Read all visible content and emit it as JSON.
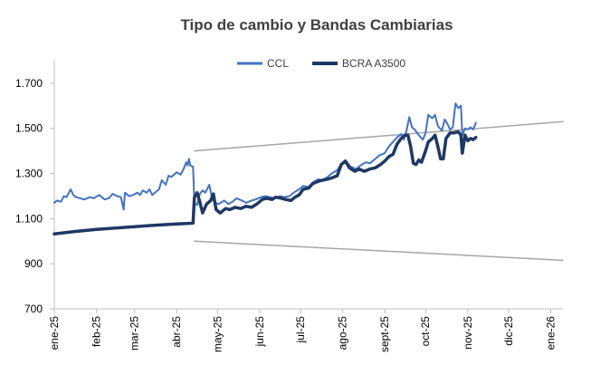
{
  "chart_data": {
    "type": "line",
    "title": "Tipo de cambio y Bandas Cambiarias",
    "xlabel": "",
    "ylabel": "",
    "ylim": [
      700,
      1800
    ],
    "yticks": [
      700,
      900,
      1100,
      1300,
      1500,
      1700
    ],
    "ytick_labels": [
      "700",
      "900",
      "1.100",
      "1.300",
      "1.500",
      "1.700"
    ],
    "xlim": [
      "2025-01-01",
      "2026-01-10"
    ],
    "xticks": [
      {
        "date": "2025-01-01",
        "label": "ene-25"
      },
      {
        "date": "2025-02-01",
        "label": "feb-25"
      },
      {
        "date": "2025-03-01",
        "label": "mar-25"
      },
      {
        "date": "2025-04-01",
        "label": "abr-25"
      },
      {
        "date": "2025-05-01",
        "label": "may-25"
      },
      {
        "date": "2025-06-01",
        "label": "jun-25"
      },
      {
        "date": "2025-07-01",
        "label": "jul-25"
      },
      {
        "date": "2025-08-01",
        "label": "ago-25"
      },
      {
        "date": "2025-09-01",
        "label": "sept-25"
      },
      {
        "date": "2025-10-01",
        "label": "oct-25"
      },
      {
        "date": "2025-11-01",
        "label": "nov-25"
      },
      {
        "date": "2025-12-01",
        "label": "dic-25"
      },
      {
        "date": "2026-01-01",
        "label": "ene-26"
      }
    ],
    "legend": {
      "position": "top",
      "entries": [
        "CCL",
        "BCRA A3500"
      ]
    },
    "grid": false,
    "series": [
      {
        "name": "CCL",
        "color": "#4472C4",
        "width": 2,
        "points": [
          [
            "2025-01-01",
            1170
          ],
          [
            "2025-01-03",
            1180
          ],
          [
            "2025-01-06",
            1175
          ],
          [
            "2025-01-08",
            1200
          ],
          [
            "2025-01-10",
            1195
          ],
          [
            "2025-01-13",
            1230
          ],
          [
            "2025-01-15",
            1205
          ],
          [
            "2025-01-17",
            1195
          ],
          [
            "2025-01-20",
            1190
          ],
          [
            "2025-01-23",
            1185
          ],
          [
            "2025-01-27",
            1195
          ],
          [
            "2025-01-30",
            1190
          ],
          [
            "2025-02-03",
            1205
          ],
          [
            "2025-02-05",
            1195
          ],
          [
            "2025-02-07",
            1185
          ],
          [
            "2025-02-10",
            1190
          ],
          [
            "2025-02-13",
            1210
          ],
          [
            "2025-02-16",
            1200
          ],
          [
            "2025-02-19",
            1195
          ],
          [
            "2025-02-21",
            1140
          ],
          [
            "2025-02-22",
            1215
          ],
          [
            "2025-02-25",
            1200
          ],
          [
            "2025-02-28",
            1205
          ],
          [
            "2025-03-03",
            1215
          ],
          [
            "2025-03-05",
            1205
          ],
          [
            "2025-03-07",
            1225
          ],
          [
            "2025-03-10",
            1215
          ],
          [
            "2025-03-12",
            1230
          ],
          [
            "2025-03-14",
            1205
          ],
          [
            "2025-03-17",
            1220
          ],
          [
            "2025-03-19",
            1230
          ],
          [
            "2025-03-21",
            1270
          ],
          [
            "2025-03-24",
            1250
          ],
          [
            "2025-03-26",
            1290
          ],
          [
            "2025-03-28",
            1285
          ],
          [
            "2025-04-01",
            1305
          ],
          [
            "2025-04-04",
            1295
          ],
          [
            "2025-04-06",
            1320
          ],
          [
            "2025-04-08",
            1350
          ],
          [
            "2025-04-09",
            1335
          ],
          [
            "2025-04-10",
            1365
          ],
          [
            "2025-04-11",
            1335
          ],
          [
            "2025-04-13",
            1330
          ],
          [
            "2025-04-14",
            1170
          ],
          [
            "2025-04-16",
            1160
          ],
          [
            "2025-04-18",
            1210
          ],
          [
            "2025-04-20",
            1225
          ],
          [
            "2025-04-22",
            1215
          ],
          [
            "2025-04-25",
            1250
          ],
          [
            "2025-04-27",
            1190
          ],
          [
            "2025-04-29",
            1170
          ],
          [
            "2025-05-02",
            1165
          ],
          [
            "2025-05-06",
            1180
          ],
          [
            "2025-05-09",
            1165
          ],
          [
            "2025-05-12",
            1175
          ],
          [
            "2025-05-15",
            1190
          ],
          [
            "2025-05-19",
            1180
          ],
          [
            "2025-05-22",
            1170
          ],
          [
            "2025-05-26",
            1180
          ],
          [
            "2025-05-29",
            1185
          ],
          [
            "2025-06-02",
            1195
          ],
          [
            "2025-06-05",
            1200
          ],
          [
            "2025-06-09",
            1195
          ],
          [
            "2025-06-12",
            1190
          ],
          [
            "2025-06-16",
            1200
          ],
          [
            "2025-06-19",
            1195
          ],
          [
            "2025-06-23",
            1200
          ],
          [
            "2025-06-26",
            1215
          ],
          [
            "2025-06-30",
            1230
          ],
          [
            "2025-07-03",
            1245
          ],
          [
            "2025-07-07",
            1240
          ],
          [
            "2025-07-10",
            1260
          ],
          [
            "2025-07-14",
            1275
          ],
          [
            "2025-07-17",
            1270
          ],
          [
            "2025-07-21",
            1285
          ],
          [
            "2025-07-24",
            1300
          ],
          [
            "2025-07-28",
            1315
          ],
          [
            "2025-07-31",
            1340
          ],
          [
            "2025-08-04",
            1350
          ],
          [
            "2025-08-07",
            1330
          ],
          [
            "2025-08-11",
            1320
          ],
          [
            "2025-08-14",
            1335
          ],
          [
            "2025-08-18",
            1350
          ],
          [
            "2025-08-21",
            1345
          ],
          [
            "2025-08-25",
            1365
          ],
          [
            "2025-08-28",
            1380
          ],
          [
            "2025-09-01",
            1390
          ],
          [
            "2025-09-04",
            1420
          ],
          [
            "2025-09-07",
            1440
          ],
          [
            "2025-09-10",
            1460
          ],
          [
            "2025-09-13",
            1475
          ],
          [
            "2025-09-15",
            1450
          ],
          [
            "2025-09-17",
            1490
          ],
          [
            "2025-09-19",
            1550
          ],
          [
            "2025-09-21",
            1505
          ],
          [
            "2025-09-23",
            1495
          ],
          [
            "2025-09-26",
            1470
          ],
          [
            "2025-09-29",
            1450
          ],
          [
            "2025-10-01",
            1480
          ],
          [
            "2025-10-03",
            1560
          ],
          [
            "2025-10-06",
            1545
          ],
          [
            "2025-10-08",
            1560
          ],
          [
            "2025-10-10",
            1510
          ],
          [
            "2025-10-13",
            1490
          ],
          [
            "2025-10-15",
            1540
          ],
          [
            "2025-10-17",
            1520
          ],
          [
            "2025-10-19",
            1495
          ],
          [
            "2025-10-21",
            1505
          ],
          [
            "2025-10-23",
            1610
          ],
          [
            "2025-10-25",
            1590
          ],
          [
            "2025-10-27",
            1600
          ],
          [
            "2025-10-28",
            1470
          ],
          [
            "2025-10-30",
            1500
          ],
          [
            "2025-11-01",
            1495
          ],
          [
            "2025-11-03",
            1505
          ],
          [
            "2025-11-05",
            1495
          ],
          [
            "2025-11-07",
            1525
          ]
        ]
      },
      {
        "name": "BCRA A3500",
        "color": "#1F3864",
        "width": 3.5,
        "points": [
          [
            "2025-01-01",
            1032
          ],
          [
            "2025-01-15",
            1042
          ],
          [
            "2025-02-01",
            1052
          ],
          [
            "2025-02-15",
            1058
          ],
          [
            "2025-03-01",
            1064
          ],
          [
            "2025-03-15",
            1070
          ],
          [
            "2025-04-01",
            1076
          ],
          [
            "2025-04-10",
            1079
          ],
          [
            "2025-04-13",
            1080
          ],
          [
            "2025-04-14",
            1195
          ],
          [
            "2025-04-16",
            1215
          ],
          [
            "2025-04-18",
            1175
          ],
          [
            "2025-04-20",
            1125
          ],
          [
            "2025-04-23",
            1165
          ],
          [
            "2025-04-26",
            1180
          ],
          [
            "2025-04-28",
            1210
          ],
          [
            "2025-04-30",
            1140
          ],
          [
            "2025-05-03",
            1125
          ],
          [
            "2025-05-07",
            1145
          ],
          [
            "2025-05-10",
            1140
          ],
          [
            "2025-05-14",
            1150
          ],
          [
            "2025-05-18",
            1145
          ],
          [
            "2025-05-22",
            1155
          ],
          [
            "2025-05-26",
            1150
          ],
          [
            "2025-05-30",
            1165
          ],
          [
            "2025-06-03",
            1185
          ],
          [
            "2025-06-06",
            1190
          ],
          [
            "2025-06-10",
            1185
          ],
          [
            "2025-06-13",
            1195
          ],
          [
            "2025-06-17",
            1190
          ],
          [
            "2025-06-20",
            1185
          ],
          [
            "2025-06-24",
            1180
          ],
          [
            "2025-06-27",
            1195
          ],
          [
            "2025-06-30",
            1205
          ],
          [
            "2025-07-03",
            1230
          ],
          [
            "2025-07-07",
            1235
          ],
          [
            "2025-07-10",
            1255
          ],
          [
            "2025-07-14",
            1265
          ],
          [
            "2025-07-17",
            1270
          ],
          [
            "2025-07-21",
            1275
          ],
          [
            "2025-07-24",
            1280
          ],
          [
            "2025-07-28",
            1290
          ],
          [
            "2025-07-31",
            1340
          ],
          [
            "2025-08-03",
            1355
          ],
          [
            "2025-08-06",
            1325
          ],
          [
            "2025-08-10",
            1310
          ],
          [
            "2025-08-13",
            1320
          ],
          [
            "2025-08-17",
            1310
          ],
          [
            "2025-08-21",
            1320
          ],
          [
            "2025-08-25",
            1325
          ],
          [
            "2025-08-29",
            1340
          ],
          [
            "2025-09-01",
            1355
          ],
          [
            "2025-09-04",
            1375
          ],
          [
            "2025-09-07",
            1385
          ],
          [
            "2025-09-10",
            1430
          ],
          [
            "2025-09-13",
            1455
          ],
          [
            "2025-09-16",
            1470
          ],
          [
            "2025-09-18",
            1470
          ],
          [
            "2025-09-20",
            1420
          ],
          [
            "2025-09-22",
            1345
          ],
          [
            "2025-09-24",
            1340
          ],
          [
            "2025-09-26",
            1360
          ],
          [
            "2025-09-28",
            1350
          ],
          [
            "2025-10-01",
            1400
          ],
          [
            "2025-10-03",
            1440
          ],
          [
            "2025-10-06",
            1455
          ],
          [
            "2025-10-08",
            1470
          ],
          [
            "2025-10-10",
            1420
          ],
          [
            "2025-10-12",
            1365
          ],
          [
            "2025-10-14",
            1365
          ],
          [
            "2025-10-16",
            1455
          ],
          [
            "2025-10-19",
            1480
          ],
          [
            "2025-10-22",
            1480
          ],
          [
            "2025-10-25",
            1485
          ],
          [
            "2025-10-27",
            1470
          ],
          [
            "2025-10-28",
            1390
          ],
          [
            "2025-10-30",
            1470
          ],
          [
            "2025-11-01",
            1445
          ],
          [
            "2025-11-03",
            1455
          ],
          [
            "2025-11-05",
            1450
          ],
          [
            "2025-11-07",
            1460
          ]
        ]
      },
      {
        "name": "",
        "color": "#A6A6A6",
        "width": 1.5,
        "points": [
          [
            "2025-04-14",
            1400
          ],
          [
            "2026-01-10",
            1530
          ]
        ]
      },
      {
        "name": "",
        "color": "#A6A6A6",
        "width": 1.5,
        "points": [
          [
            "2025-04-14",
            1000
          ],
          [
            "2026-01-10",
            915
          ]
        ]
      }
    ]
  }
}
